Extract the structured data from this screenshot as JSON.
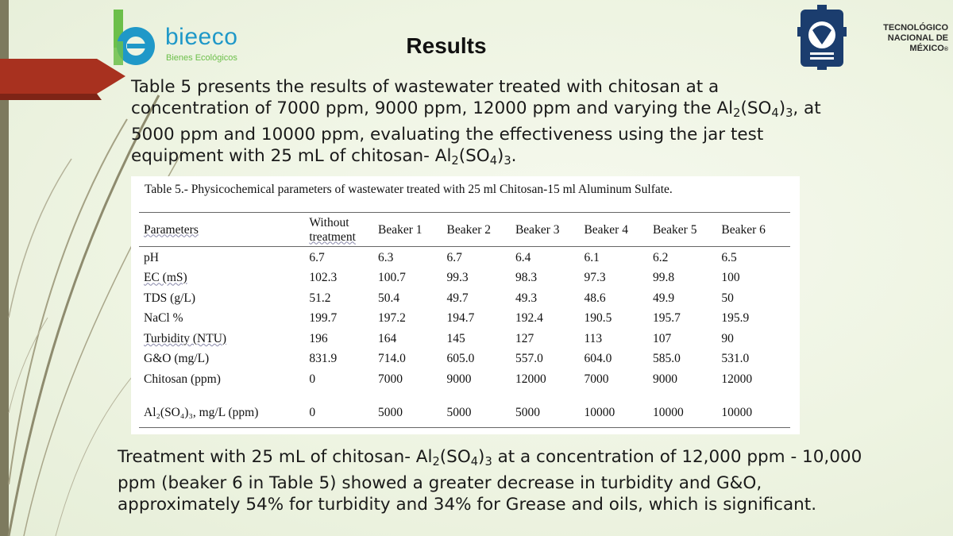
{
  "brand": {
    "left_logo_name": "bieeco",
    "left_logo_tagline": "Bienes Ecológicos",
    "right_logo_line1": "TECNOLÓGICO",
    "right_logo_line2": "NACIONAL DE MÉXICO",
    "right_logo_mark": "®",
    "colors": {
      "bieeco_blue": "#1f98c8",
      "bieeco_green": "#6cbf4a",
      "tecnm_blue": "#1b3d6e",
      "ribbon_red": "#a8311f"
    }
  },
  "slide": {
    "title": "Results"
  },
  "intro": {
    "p1": "Table 5 presents the results of wastewater treated with chitosan at a concentration of 7000 ppm, 9000 ppm, 12000 ppm and varying the Al",
    "p1_sub1": "2",
    "p1_mid": "(SO",
    "p1_sub2": "4",
    "p1_mid2": ")",
    "p1_sub3": "3",
    "p2": ", at 5000 ppm and 10000 ppm, evaluating the effectiveness using the jar test equipment with 25 mL of chitosan- Al",
    "p2_sub1": "2",
    "p2_mid": "(SO",
    "p2_sub2": "4",
    "p2_mid2": ")",
    "p2_sub3": "3",
    "p2_end": "."
  },
  "table": {
    "caption": "Table 5.- Physicochemical parameters of wastewater treated with 25 ml Chitosan-15 ml Aluminum Sulfate.",
    "headers": [
      "Parameters",
      "Without treatment",
      "Beaker 1",
      "Beaker 2",
      "Beaker 3",
      "Beaker 4",
      "Beaker 5",
      "Beaker 6"
    ],
    "header_without_l1": "Without",
    "header_without_l2": "treatment",
    "rows": [
      [
        "pH",
        "6.7",
        "6.3",
        "6.7",
        "6.4",
        "6.1",
        "6.2",
        "6.5"
      ],
      [
        "EC (mS)",
        "102.3",
        "100.7",
        "99.3",
        "98.3",
        "97.3",
        "99.8",
        "100"
      ],
      [
        "TDS (g/L)",
        "51.2",
        "50.4",
        "49.7",
        "49.3",
        "48.6",
        "49.9",
        "50"
      ],
      [
        "NaCl %",
        "199.7",
        "197.2",
        "194.7",
        "192.4",
        "190.5",
        "195.7",
        "195.9"
      ],
      [
        "Turbidity (NTU)",
        "196",
        "164",
        "145",
        "127",
        "113",
        "107",
        "90"
      ],
      [
        "G&O (mg/L)",
        "831.9",
        "714.0",
        "605.0",
        "557.0",
        "604.0",
        "585.0",
        "531.0"
      ],
      [
        "Chitosan (ppm)",
        "0",
        "7000",
        "9000",
        "12000",
        "7000",
        "9000",
        "12000"
      ],
      [
        "Al₂(SO₄)₃, mg/L (ppm)",
        "0",
        "5000",
        "5000",
        "5000",
        "10000",
        "10000",
        "10000"
      ]
    ]
  },
  "closing": {
    "t1": "Treatment with 25 mL of chitosan- Al",
    "sub1": "2",
    "t2": "(SO",
    "sub2": "4",
    "t3": ")",
    "sub3": "3",
    "t4": " at a concentration of 12,000 ppm - 10,000 ppm (beaker 6 in Table 5) showed a greater decrease in turbidity and G&O, approximately 54% for turbidity and 34% for Grease and oils, which is significant."
  }
}
